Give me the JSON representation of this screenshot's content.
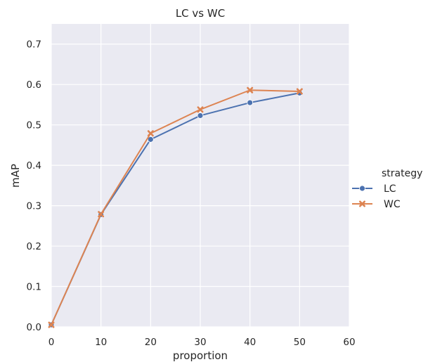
{
  "chart_data": {
    "type": "line",
    "title": "LC vs WC",
    "xlabel": "proportion",
    "ylabel": "mAP",
    "xlim": [
      0,
      60
    ],
    "ylim": [
      0.0,
      0.75
    ],
    "xticks": [
      0,
      10,
      20,
      30,
      40,
      50,
      60
    ],
    "yticks": [
      0.0,
      0.1,
      0.2,
      0.3,
      0.4,
      0.5,
      0.6,
      0.7
    ],
    "xtick_labels": [
      "0",
      "10",
      "20",
      "30",
      "40",
      "50",
      "60"
    ],
    "ytick_labels": [
      "0.0",
      "0.1",
      "0.2",
      "0.3",
      "0.4",
      "0.5",
      "0.6",
      "0.7"
    ],
    "grid": true,
    "background": "#eaeaf2",
    "grid_color": "#ffffff",
    "legend": {
      "title": "strategy",
      "placement": "right"
    },
    "x": [
      0,
      10,
      20,
      30,
      40,
      50
    ],
    "series": [
      {
        "name": "LC",
        "marker": "circle",
        "color": "#4c72b0",
        "values": [
          0.005,
          0.278,
          0.464,
          0.523,
          0.555,
          0.579
        ]
      },
      {
        "name": "WC",
        "marker": "x",
        "color": "#dd8452",
        "values": [
          0.005,
          0.279,
          0.479,
          0.538,
          0.586,
          0.583
        ]
      }
    ]
  }
}
